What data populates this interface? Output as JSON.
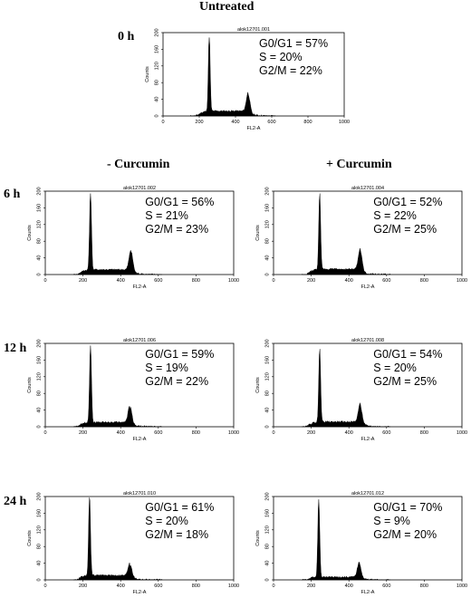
{
  "labels": {
    "top": "Untreated",
    "col_minus": "- Curcumin",
    "col_plus": "+ Curcumin",
    "rows": [
      "0 h",
      "6 h",
      "12 h",
      "24 h"
    ]
  },
  "colors": {
    "ink": "#000000",
    "background": "#ffffff"
  },
  "chart_data": [
    {
      "type": "area",
      "title": "alok12701.001",
      "xlabel": "FL2-A",
      "ylabel": "Counts",
      "xlim": [
        0,
        1000
      ],
      "ylim": [
        0,
        200
      ],
      "xticks": [
        "0",
        "200",
        "400",
        "600",
        "800",
        "1000"
      ],
      "yticks": [
        "0",
        "40",
        "80",
        "120",
        "160",
        "200"
      ],
      "annotations": [
        "G0/G1 = 57%",
        "S = 20%",
        "G2/M = 22%"
      ],
      "peaks": {
        "g1_x": 255,
        "g1_height": 190,
        "g2_x": 470,
        "g2_height": 45,
        "s_level": 12
      }
    },
    {
      "type": "area",
      "title": "alok12701.002",
      "xlabel": "FL2-A",
      "ylabel": "Counts",
      "xlim": [
        0,
        1000
      ],
      "ylim": [
        0,
        200
      ],
      "xticks": [
        "0",
        "200",
        "400",
        "600",
        "800",
        "1000"
      ],
      "yticks": [
        "0",
        "40",
        "80",
        "120",
        "160",
        "200"
      ],
      "annotations": [
        "G0/G1 = 56%",
        "S = 21%",
        "G2/M = 23%"
      ],
      "peaks": {
        "g1_x": 240,
        "g1_height": 195,
        "g2_x": 455,
        "g2_height": 48,
        "s_level": 12
      }
    },
    {
      "type": "area",
      "title": "alok12701.004",
      "xlabel": "FL2-A",
      "ylabel": "Counts",
      "xlim": [
        0,
        1000
      ],
      "ylim": [
        0,
        200
      ],
      "xticks": [
        "0",
        "200",
        "400",
        "600",
        "800",
        "1000"
      ],
      "yticks": [
        "0",
        "40",
        "80",
        "120",
        "160",
        "200"
      ],
      "annotations": [
        "G0/G1 = 52%",
        "S = 22%",
        "G2/M = 25%"
      ],
      "peaks": {
        "g1_x": 245,
        "g1_height": 185,
        "g2_x": 460,
        "g2_height": 50,
        "s_level": 13
      }
    },
    {
      "type": "area",
      "title": "alok12701.006",
      "xlabel": "FL2-A",
      "ylabel": "Counts",
      "xlim": [
        0,
        1000
      ],
      "ylim": [
        0,
        200
      ],
      "xticks": [
        "0",
        "200",
        "400",
        "600",
        "800",
        "1000"
      ],
      "yticks": [
        "0",
        "40",
        "80",
        "120",
        "160",
        "200"
      ],
      "annotations": [
        "G0/G1 = 59%",
        "S = 19%",
        "G2/M = 22%"
      ],
      "peaks": {
        "g1_x": 240,
        "g1_height": 195,
        "g2_x": 450,
        "g2_height": 42,
        "s_level": 11
      }
    },
    {
      "type": "area",
      "title": "alok12701.008",
      "xlabel": "FL2-A",
      "ylabel": "Counts",
      "xlim": [
        0,
        1000
      ],
      "ylim": [
        0,
        200
      ],
      "xticks": [
        "0",
        "200",
        "400",
        "600",
        "800",
        "1000"
      ],
      "yticks": [
        "0",
        "40",
        "80",
        "120",
        "160",
        "200"
      ],
      "annotations": [
        "G0/G1 = 54%",
        "S = 20%",
        "G2/M = 25%"
      ],
      "peaks": {
        "g1_x": 245,
        "g1_height": 180,
        "g2_x": 460,
        "g2_height": 44,
        "s_level": 12
      }
    },
    {
      "type": "area",
      "title": "alok12701.010",
      "xlabel": "FL2-A",
      "ylabel": "Counts",
      "xlim": [
        0,
        1000
      ],
      "ylim": [
        0,
        200
      ],
      "xticks": [
        "0",
        "200",
        "400",
        "600",
        "800",
        "1000"
      ],
      "yticks": [
        "0",
        "40",
        "80",
        "120",
        "160",
        "200"
      ],
      "annotations": [
        "G0/G1 = 61%",
        "S = 20%",
        "G2/M = 18%"
      ],
      "peaks": {
        "g1_x": 235,
        "g1_height": 195,
        "g2_x": 450,
        "g2_height": 32,
        "s_level": 11
      }
    },
    {
      "type": "area",
      "title": "alok12701.012",
      "xlabel": "FL2-A",
      "ylabel": "Counts",
      "xlim": [
        0,
        1000
      ],
      "ylim": [
        0,
        200
      ],
      "xticks": [
        "0",
        "200",
        "400",
        "600",
        "800",
        "1000"
      ],
      "yticks": [
        "0",
        "40",
        "80",
        "120",
        "160",
        "200"
      ],
      "annotations": [
        "G0/G1 = 70%",
        "S = 9%",
        "G2/M = 20%"
      ],
      "peaks": {
        "g1_x": 240,
        "g1_height": 195,
        "g2_x": 455,
        "g2_height": 36,
        "s_level": 7
      }
    }
  ]
}
